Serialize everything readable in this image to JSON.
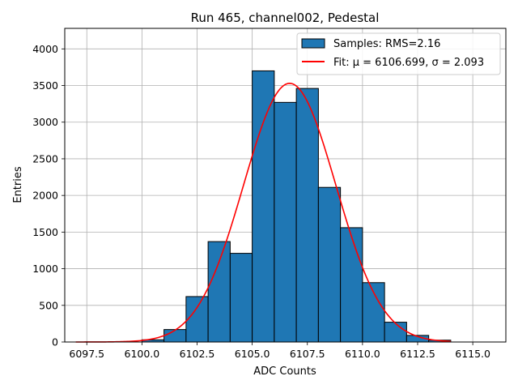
{
  "chart_data": {
    "type": "bar",
    "title": "Run 465, channel002, Pedestal",
    "xlabel": "ADC Counts",
    "ylabel": "Entries",
    "xlim": [
      6096.5,
      6116.5
    ],
    "ylim": [
      0,
      4280
    ],
    "xticks": [
      6097.5,
      6100.0,
      6102.5,
      6105.0,
      6107.5,
      6110.0,
      6112.5,
      6115.0
    ],
    "xtick_labels": [
      "6097.5",
      "6100.0",
      "6102.5",
      "6105.0",
      "6107.5",
      "6110.0",
      "6112.5",
      "6115.0"
    ],
    "yticks": [
      0,
      500,
      1000,
      1500,
      2000,
      2500,
      3000,
      3500,
      4000
    ],
    "ytick_labels": [
      "0",
      "500",
      "1000",
      "1500",
      "2000",
      "2500",
      "3000",
      "3500",
      "4000"
    ],
    "grid": true,
    "legend_position": "top-right",
    "series": [
      {
        "name": "Samples: RMS=2.16",
        "kind": "histogram",
        "color": "#1f77b4",
        "edge_color": "#000000",
        "bins": [
          {
            "x0": 6100,
            "x1": 6101,
            "count": 30
          },
          {
            "x0": 6101,
            "x1": 6102,
            "count": 170
          },
          {
            "x0": 6102,
            "x1": 6103,
            "count": 620
          },
          {
            "x0": 6103,
            "x1": 6104,
            "count": 1370
          },
          {
            "x0": 6104,
            "x1": 6105,
            "count": 1210
          },
          {
            "x0": 6105,
            "x1": 6106,
            "count": 3700
          },
          {
            "x0": 6106,
            "x1": 6107,
            "count": 3270
          },
          {
            "x0": 6107,
            "x1": 6108,
            "count": 3460
          },
          {
            "x0": 6108,
            "x1": 6109,
            "count": 2110
          },
          {
            "x0": 6109,
            "x1": 6110,
            "count": 1560
          },
          {
            "x0": 6110,
            "x1": 6111,
            "count": 810
          },
          {
            "x0": 6111,
            "x1": 6112,
            "count": 270
          },
          {
            "x0": 6112,
            "x1": 6113,
            "count": 90
          },
          {
            "x0": 6113,
            "x1": 6114,
            "count": 25
          }
        ]
      },
      {
        "name": "Fit: μ = 6106.699, σ = 2.093",
        "kind": "gaussian",
        "color": "#ff0000",
        "mu": 6106.699,
        "sigma": 2.093,
        "amplitude": 3530,
        "x_range": [
          6097,
          6114
        ]
      }
    ]
  }
}
